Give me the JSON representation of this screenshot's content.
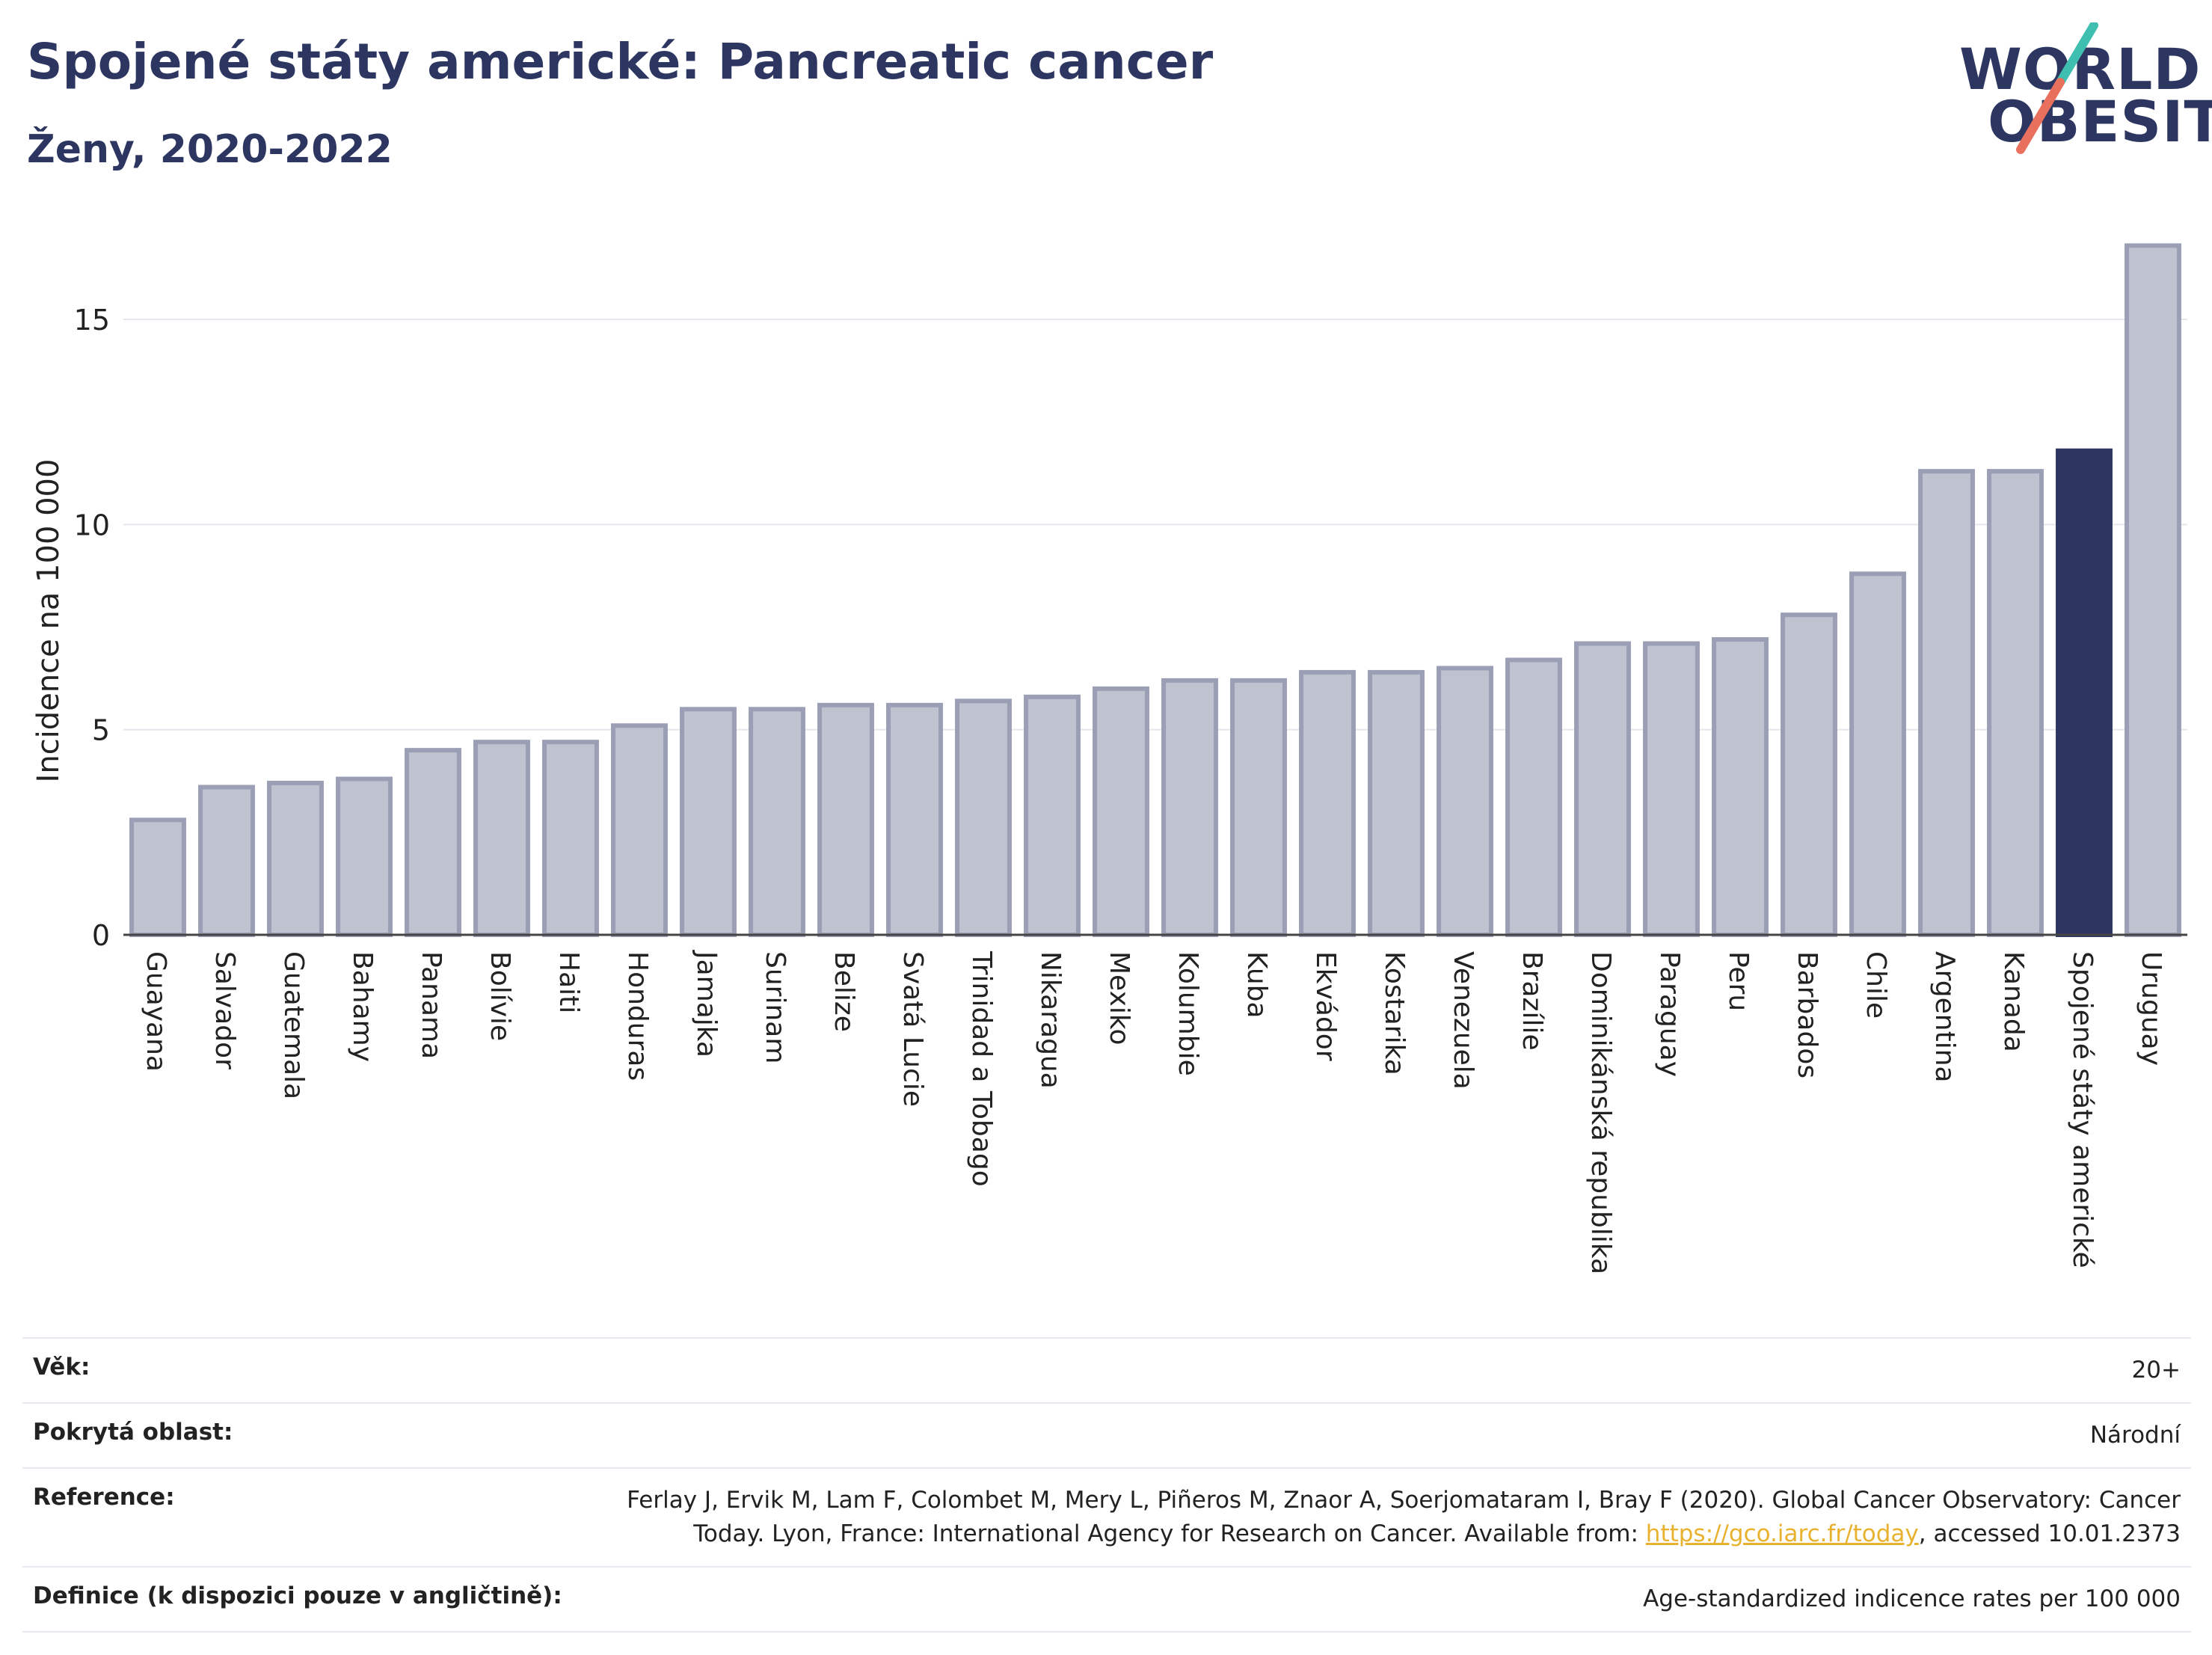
{
  "header": {
    "title": "Spojené státy americké: Pancreatic cancer",
    "subtitle": "Ženy, 2020-2022"
  },
  "logo": {
    "line1": "WORLD",
    "line2": "OBESITY",
    "colors": {
      "text": "#2c3660",
      "slash_top": "#3fbfb0",
      "slash_bottom": "#e8705d"
    }
  },
  "chart_data": {
    "type": "bar",
    "ylabel": "Incidence na 100 000",
    "ylim": [
      0,
      17.5
    ],
    "yticks": [
      0,
      5,
      10,
      15
    ],
    "grid": true,
    "highlight": "Spojené státy americké",
    "colors": {
      "bar": "#bfc2cf",
      "bar_edge": "#9a9fb6",
      "highlight": "#2c3660"
    },
    "categories": [
      "Guayana",
      "Salvador",
      "Guatemala",
      "Bahamy",
      "Panama",
      "Bolívie",
      "Haiti",
      "Honduras",
      "Jamajka",
      "Surinam",
      "Belize",
      "Svatá Lucie",
      "Trinidad a Tobago",
      "Nikaragua",
      "Mexiko",
      "Kolumbie",
      "Kuba",
      "Ekvádor",
      "Kostarika",
      "Venezuela",
      "Brazílie",
      "Dominikánská republika",
      "Paraguay",
      "Peru",
      "Barbados",
      "Chile",
      "Argentina",
      "Kanada",
      "Spojené státy americké",
      "Uruguay"
    ],
    "values": [
      2.8,
      3.6,
      3.7,
      3.8,
      4.5,
      4.7,
      4.7,
      5.1,
      5.5,
      5.5,
      5.6,
      5.6,
      5.7,
      5.8,
      6.0,
      6.2,
      6.2,
      6.4,
      6.4,
      6.5,
      6.7,
      7.1,
      7.1,
      7.2,
      7.8,
      8.8,
      11.3,
      11.3,
      11.8,
      16.8
    ]
  },
  "meta": {
    "age_label": "Věk:",
    "age_value": "20+",
    "coverage_label": "Pokrytá oblast:",
    "coverage_value": "Národní",
    "reference_label": "Reference:",
    "reference_text_1": "Ferlay J, Ervik M, Lam F, Colombet M, Mery L, Piñeros M, Znaor A, Soerjomataram I, Bray F (2020). Global Cancer Observatory: Cancer Today. Lyon, France: International Agency for Research on Cancer. Available from: ",
    "reference_link": "https://gco.iarc.fr/today",
    "reference_text_2": ", accessed 10.01.2373",
    "definition_label": "Definice (k dispozici pouze v angličtině):",
    "definition_value": "Age-standardized indicence rates per 100 000"
  }
}
